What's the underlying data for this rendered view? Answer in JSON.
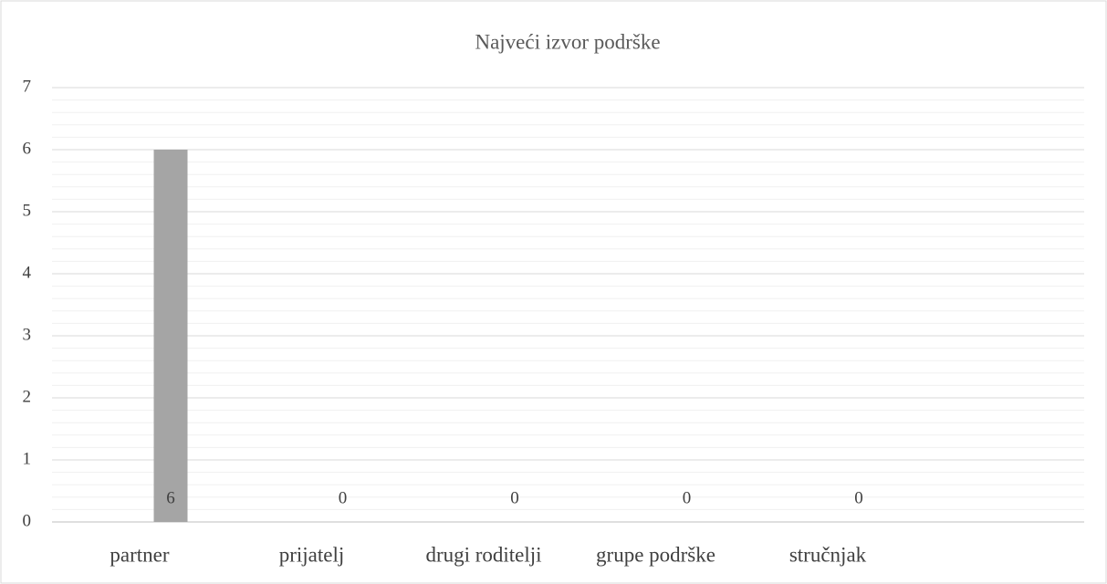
{
  "chart_data": {
    "type": "bar",
    "title": "Najveći izvor podrške",
    "categories": [
      "partner",
      "prijatelj",
      "drugi roditelji",
      "grupe podrške",
      "stručnjak",
      null
    ],
    "values": [
      6,
      0,
      0,
      0,
      0,
      null
    ],
    "color": "#a5a5a5",
    "ylim": [
      0,
      7
    ],
    "yticks": [
      0,
      1,
      2,
      3,
      4,
      5,
      6,
      7
    ],
    "grid": true,
    "minor_grid_divisions": 5,
    "data_labels": true
  }
}
